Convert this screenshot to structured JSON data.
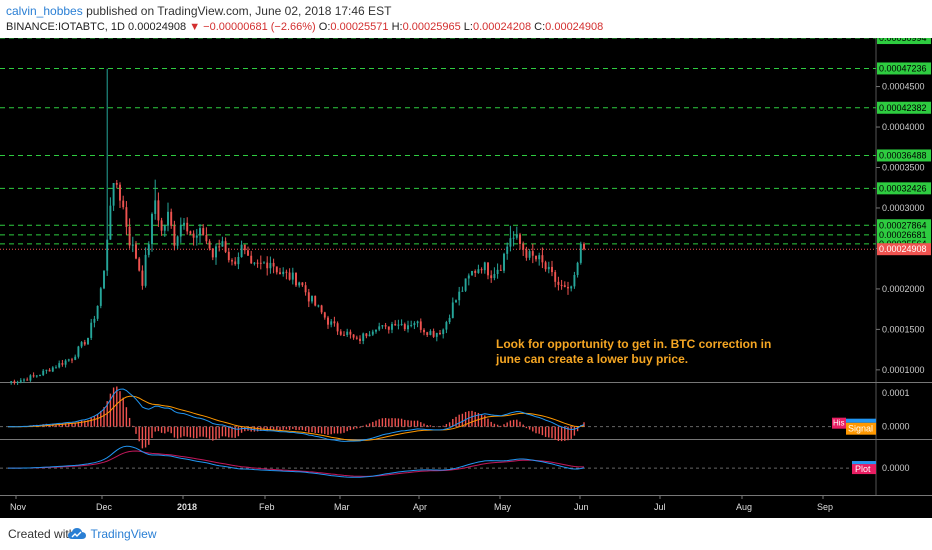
{
  "header": {
    "author": "calvin_hobbes",
    "published_text": "published on TradingView.com, June 02, 2018 17:46 EST",
    "symbol": "BINANCE:IOTABTC, 1D",
    "last": "0.00024908",
    "change": "▼ −0.00000681 (−2.66%)",
    "o_label": "O:",
    "o_value": "0.00025571",
    "h_label": "H:",
    "h_value": "0.00025965",
    "l_label": "L:",
    "l_value": "0.00024208",
    "c_label": "C:",
    "c_value": "0.00024908"
  },
  "footer": {
    "created_with": "Created with",
    "brand": "TradingView",
    "logo_icon": "tradingview-cloud-icon"
  },
  "annotation": {
    "line1": "Look for opportunity to get in. BTC correction in",
    "line2": "june can create a lower buy price.",
    "color": "#f5a623"
  },
  "colors": {
    "background": "#000000",
    "up": "#26a69a",
    "down": "#ef5350",
    "level": "#2ecc40",
    "macd_line": "#2196f3",
    "signal_line": "#ff9800",
    "histogram": "#ef5350",
    "last_price_badge": "#ef5350",
    "level_badge": "#2ecc40"
  },
  "chart_data": [
    {
      "type": "candlestick",
      "x_ticks": [
        "Nov",
        "Dec",
        "2018",
        "Feb",
        "Mar",
        "Apr",
        "May",
        "Jun",
        "Jul",
        "Aug",
        "Sep"
      ],
      "y_ticks": [
        "0.0001000",
        "0.0001500",
        "0.0002000",
        "0.0002500",
        "0.0003000",
        "0.0003500",
        "0.0004000",
        "0.0004500"
      ],
      "ylim": [
        8.5e-05,
        0.00051
      ],
      "level_labels": [
        "0.00050994",
        "0.00047236",
        "0.00042382",
        "0.00036488",
        "0.00032426",
        "0.00027864",
        "0.00026681",
        "0.00025564"
      ],
      "last_price_label": "0.00024908",
      "anchors": [
        {
          "day": 0,
          "price": 8.5e-05
        },
        {
          "day": 5,
          "price": 8.8e-05
        },
        {
          "day": 10,
          "price": 9.5e-05
        },
        {
          "day": 15,
          "price": 0.000105
        },
        {
          "day": 20,
          "price": 0.000115
        },
        {
          "day": 25,
          "price": 0.00014
        },
        {
          "day": 28,
          "price": 0.00018
        },
        {
          "day": 30,
          "price": 0.00022
        },
        {
          "day": 32,
          "price": 0.00031
        },
        {
          "day": 34,
          "price": 0.00033
        },
        {
          "day": 36,
          "price": 0.0003
        },
        {
          "day": 38,
          "price": 0.00026
        },
        {
          "day": 40,
          "price": 0.00024
        },
        {
          "day": 42,
          "price": 0.00021
        },
        {
          "day": 44,
          "price": 0.00026
        },
        {
          "day": 46,
          "price": 0.00031
        },
        {
          "day": 48,
          "price": 0.00027
        },
        {
          "day": 50,
          "price": 0.00029
        },
        {
          "day": 52,
          "price": 0.00026
        },
        {
          "day": 55,
          "price": 0.00029
        },
        {
          "day": 58,
          "price": 0.00026
        },
        {
          "day": 61,
          "price": 0.00027
        },
        {
          "day": 64,
          "price": 0.00024
        },
        {
          "day": 67,
          "price": 0.00026
        },
        {
          "day": 70,
          "price": 0.00023
        },
        {
          "day": 73,
          "price": 0.00025
        },
        {
          "day": 76,
          "price": 0.000225
        },
        {
          "day": 79,
          "price": 0.00023
        },
        {
          "day": 82,
          "price": 0.000235
        },
        {
          "day": 85,
          "price": 0.00022
        },
        {
          "day": 88,
          "price": 0.000215
        },
        {
          "day": 91,
          "price": 0.00021
        },
        {
          "day": 94,
          "price": 0.00019
        },
        {
          "day": 97,
          "price": 0.000175
        },
        {
          "day": 100,
          "price": 0.00016
        },
        {
          "day": 103,
          "price": 0.00015
        },
        {
          "day": 106,
          "price": 0.000145
        },
        {
          "day": 109,
          "price": 0.000135
        },
        {
          "day": 112,
          "price": 0.000145
        },
        {
          "day": 115,
          "price": 0.000155
        },
        {
          "day": 118,
          "price": 0.00015
        },
        {
          "day": 121,
          "price": 0.00016
        },
        {
          "day": 124,
          "price": 0.000155
        },
        {
          "day": 127,
          "price": 0.00016
        },
        {
          "day": 130,
          "price": 0.00015
        },
        {
          "day": 133,
          "price": 0.000145
        },
        {
          "day": 136,
          "price": 0.00015
        },
        {
          "day": 139,
          "price": 0.00018
        },
        {
          "day": 142,
          "price": 0.0002
        },
        {
          "day": 145,
          "price": 0.00022
        },
        {
          "day": 148,
          "price": 0.00023
        },
        {
          "day": 151,
          "price": 0.00022
        },
        {
          "day": 154,
          "price": 0.00023
        },
        {
          "day": 157,
          "price": 0.000265
        },
        {
          "day": 159,
          "price": 0.00026
        },
        {
          "day": 161,
          "price": 0.00025
        },
        {
          "day": 163,
          "price": 0.00024
        },
        {
          "day": 166,
          "price": 0.000235
        },
        {
          "day": 169,
          "price": 0.00022
        },
        {
          "day": 172,
          "price": 0.000205
        },
        {
          "day": 175,
          "price": 0.000195
        },
        {
          "day": 177,
          "price": 0.00021
        },
        {
          "day": 179,
          "price": 0.00025
        },
        {
          "day": 180,
          "price": 0.000249
        }
      ],
      "spikes": [
        {
          "day": 31,
          "high": 0.000472
        },
        {
          "day": 33,
          "high": 0.00033
        },
        {
          "day": 46,
          "high": 0.000335
        },
        {
          "day": 157,
          "high": 0.000278
        }
      ]
    },
    {
      "type": "line",
      "name": "MACD",
      "legend": [
        "Histogram",
        "Signal"
      ],
      "ylabel_tick": "0.0001",
      "zero_tick": "0.0000"
    },
    {
      "type": "line",
      "name": "oscillator",
      "legend": [
        "Plot"
      ],
      "zero_tick": "0.0000"
    }
  ]
}
